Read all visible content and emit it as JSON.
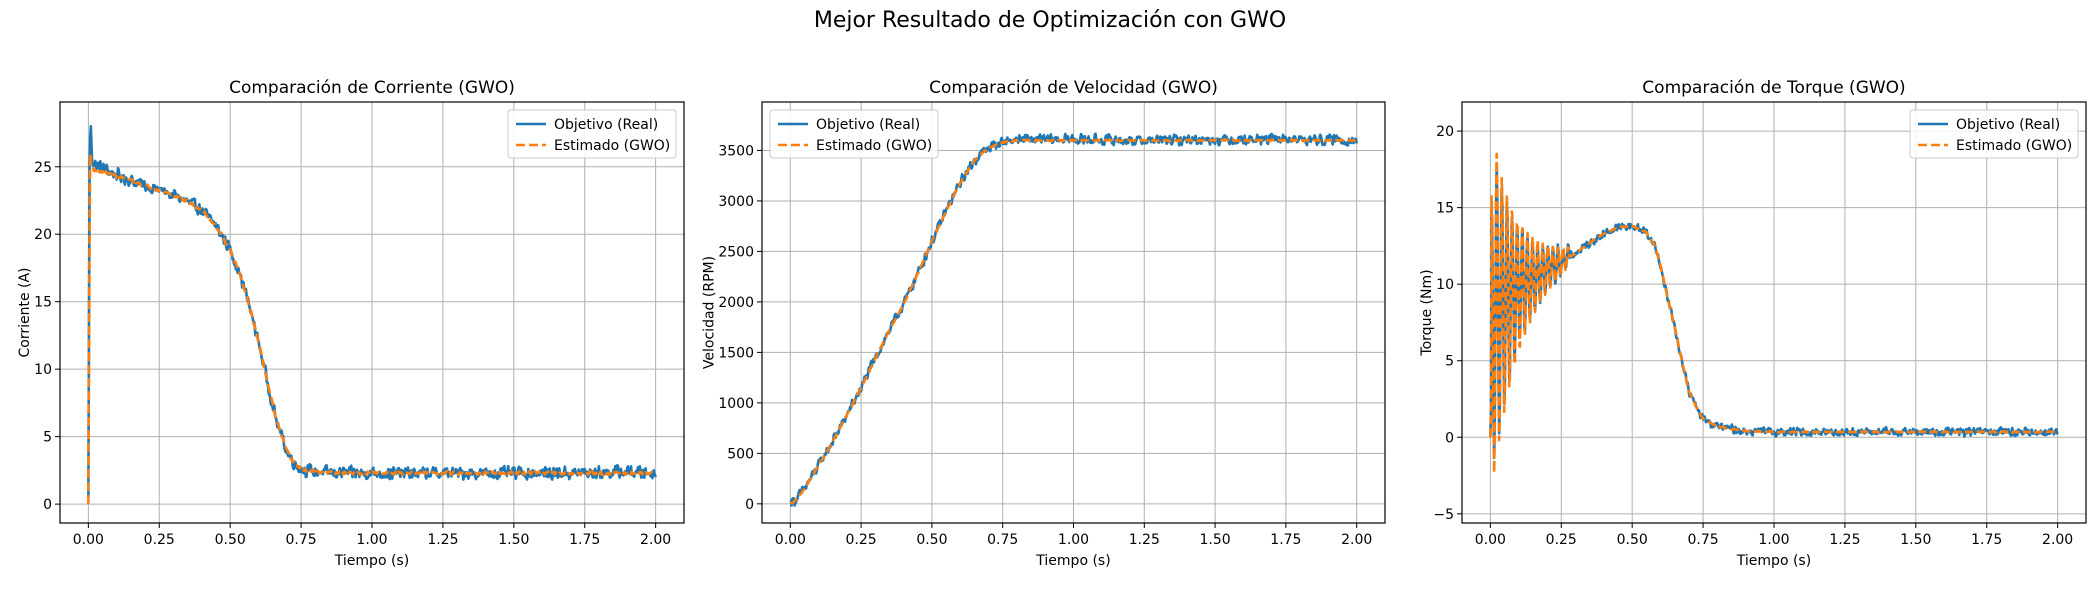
{
  "suptitle": "Mejor Resultado de Optimización con GWO",
  "colors": {
    "real": "#1f77b4",
    "estimated": "#ff7f0e",
    "grid": "#b0b0b0"
  },
  "chart_data": [
    {
      "type": "line",
      "title": "Comparación de Corriente (GWO)",
      "xlabel": "Tiempo (s)",
      "ylabel": "Corriente (A)",
      "xlim": [
        -0.1,
        2.1
      ],
      "ylim": [
        -1.4,
        29.8
      ],
      "xticks": [
        "0.00",
        "0.25",
        "0.50",
        "0.75",
        "1.00",
        "1.25",
        "1.50",
        "1.75",
        "2.00"
      ],
      "yticks": [
        "0",
        "5",
        "10",
        "15",
        "20",
        "25"
      ],
      "grid": true,
      "legend": "top-right",
      "series": [
        {
          "name": "Objetivo (Real)",
          "noise": 0.55,
          "x": [
            0,
            0.004,
            0.008,
            0.012,
            0.02,
            0.04,
            0.06,
            0.08,
            0.1,
            0.12,
            0.15,
            0.2,
            0.25,
            0.3,
            0.35,
            0.4,
            0.45,
            0.48,
            0.5,
            0.53,
            0.56,
            0.6,
            0.63,
            0.66,
            0.7,
            0.73,
            0.75,
            0.8,
            0.9,
            1.0,
            1.25,
            1.5,
            1.75,
            1.9,
            2.0
          ],
          "y": [
            0.5,
            24.5,
            28.5,
            25.8,
            25.2,
            25.0,
            24.8,
            24.6,
            24.4,
            24.2,
            24.0,
            23.6,
            23.3,
            22.9,
            22.4,
            21.8,
            20.6,
            19.6,
            18.8,
            17.3,
            15.3,
            12.0,
            9.2,
            6.4,
            3.9,
            2.9,
            2.6,
            2.4,
            2.3,
            2.3,
            2.3,
            2.3,
            2.3,
            2.4,
            2.3
          ]
        },
        {
          "name": "Estimado (GWO)",
          "noise": 0.15,
          "x": [
            0,
            0.006,
            0.012,
            0.02,
            0.05,
            0.1,
            0.15,
            0.2,
            0.25,
            0.3,
            0.35,
            0.4,
            0.45,
            0.48,
            0.5,
            0.53,
            0.56,
            0.6,
            0.63,
            0.66,
            0.7,
            0.73,
            0.75,
            0.8,
            0.9,
            1.0,
            1.25,
            1.5,
            1.75,
            2.0
          ],
          "y": [
            0.0,
            26.0,
            25.0,
            24.8,
            24.6,
            24.3,
            24.0,
            23.6,
            23.3,
            22.9,
            22.4,
            21.8,
            20.6,
            19.6,
            18.8,
            17.3,
            15.3,
            12.0,
            9.2,
            6.4,
            3.9,
            2.9,
            2.6,
            2.4,
            2.3,
            2.3,
            2.3,
            2.3,
            2.3,
            2.3
          ]
        }
      ]
    },
    {
      "type": "line",
      "title": "Comparación de Velocidad (GWO)",
      "xlabel": "Tiempo (s)",
      "ylabel": "Velocidad (RPM)",
      "xlim": [
        -0.1,
        2.1
      ],
      "ylim": [
        -190,
        3980
      ],
      "xticks": [
        "0.00",
        "0.25",
        "0.50",
        "0.75",
        "1.00",
        "1.25",
        "1.50",
        "1.75",
        "2.00"
      ],
      "yticks": [
        "0",
        "500",
        "1000",
        "1500",
        "2000",
        "2500",
        "3000",
        "3500"
      ],
      "grid": true,
      "legend": "top-left",
      "series": [
        {
          "name": "Objetivo (Real)",
          "noise": 60,
          "x": [
            0,
            0.02,
            0.05,
            0.1,
            0.15,
            0.2,
            0.25,
            0.3,
            0.35,
            0.4,
            0.45,
            0.5,
            0.55,
            0.6,
            0.65,
            0.7,
            0.75,
            0.8,
            0.9,
            1.0,
            1.25,
            1.5,
            1.75,
            2.0
          ],
          "y": [
            30,
            40,
            150,
            380,
            620,
            880,
            1150,
            1440,
            1720,
            1980,
            2280,
            2600,
            2900,
            3180,
            3400,
            3530,
            3590,
            3610,
            3610,
            3610,
            3600,
            3610,
            3610,
            3600
          ]
        },
        {
          "name": "Estimado (GWO)",
          "noise": 8,
          "x": [
            0,
            0.02,
            0.05,
            0.1,
            0.15,
            0.2,
            0.25,
            0.3,
            0.35,
            0.4,
            0.45,
            0.5,
            0.55,
            0.6,
            0.65,
            0.7,
            0.75,
            0.8,
            0.9,
            1.0,
            1.25,
            1.5,
            1.75,
            2.0
          ],
          "y": [
            0,
            40,
            150,
            380,
            620,
            880,
            1150,
            1440,
            1720,
            1980,
            2280,
            2600,
            2900,
            3180,
            3400,
            3530,
            3580,
            3600,
            3600,
            3600,
            3600,
            3600,
            3600,
            3600
          ]
        }
      ]
    },
    {
      "type": "line",
      "title": "Comparación de Torque (GWO)",
      "xlabel": "Tiempo (s)",
      "ylabel": "Torque (Nm)",
      "xlim": [
        -0.1,
        2.1
      ],
      "ylim": [
        -5.6,
        21.9
      ],
      "xticks": [
        "0.00",
        "0.25",
        "0.50",
        "0.75",
        "1.00",
        "1.25",
        "1.50",
        "1.75",
        "2.00"
      ],
      "yticks": [
        "−5",
        "0",
        "5",
        "10",
        "15",
        "20"
      ],
      "grid": true,
      "legend": "top-right",
      "series": [
        {
          "name": "Objetivo (Real)",
          "noise": 0.32,
          "osc_amp0": 11.5,
          "osc_decay": 10.5,
          "osc_period": 0.018,
          "osc_end": 0.28,
          "x": [
            0,
            0.01,
            0.05,
            0.1,
            0.15,
            0.2,
            0.25,
            0.3,
            0.35,
            0.4,
            0.45,
            0.5,
            0.55,
            0.58,
            0.6,
            0.62,
            0.65,
            0.68,
            0.7,
            0.73,
            0.75,
            0.8,
            0.9,
            1.0,
            1.25,
            1.5,
            1.75,
            2.0
          ],
          "y": [
            0,
            8.5,
            9.0,
            9.8,
            10.5,
            11.0,
            11.5,
            12.0,
            12.7,
            13.3,
            13.7,
            13.8,
            13.4,
            12.5,
            11.2,
            9.5,
            7.2,
            4.6,
            3.0,
            1.8,
            1.2,
            0.7,
            0.4,
            0.35,
            0.35,
            0.35,
            0.35,
            0.35
          ]
        },
        {
          "name": "Estimado (GWO)",
          "noise": 0.05,
          "osc_amp0": 12.5,
          "osc_decay": 10.5,
          "osc_period": 0.018,
          "osc_end": 0.28,
          "x": [
            0,
            0.01,
            0.05,
            0.1,
            0.15,
            0.2,
            0.25,
            0.3,
            0.35,
            0.4,
            0.45,
            0.5,
            0.55,
            0.58,
            0.6,
            0.62,
            0.65,
            0.68,
            0.7,
            0.73,
            0.75,
            0.8,
            0.9,
            1.0,
            1.25,
            1.5,
            1.75,
            2.0
          ],
          "y": [
            0,
            8.5,
            9.0,
            9.8,
            10.5,
            11.0,
            11.5,
            12.0,
            12.7,
            13.3,
            13.7,
            13.8,
            13.4,
            12.5,
            11.2,
            9.5,
            7.2,
            4.6,
            3.0,
            1.8,
            1.2,
            0.7,
            0.4,
            0.35,
            0.35,
            0.35,
            0.35,
            0.35
          ]
        }
      ]
    }
  ]
}
